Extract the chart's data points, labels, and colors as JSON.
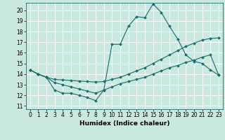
{
  "xlabel": "Humidex (Indice chaleur)",
  "bg_color": "#c8e8e0",
  "grid_color": "#ffffff",
  "line_color": "#1a6b6b",
  "xlim": [
    -0.5,
    23.5
  ],
  "ylim": [
    10.7,
    20.7
  ],
  "yticks": [
    11,
    12,
    13,
    14,
    15,
    16,
    17,
    18,
    19,
    20
  ],
  "xticks": [
    0,
    1,
    2,
    3,
    4,
    5,
    6,
    7,
    8,
    9,
    10,
    11,
    12,
    13,
    14,
    15,
    16,
    17,
    18,
    19,
    20,
    21,
    22,
    23
  ],
  "line1_x": [
    0,
    1,
    2,
    3,
    4,
    5,
    6,
    7,
    8,
    9,
    10,
    11,
    12,
    13,
    14,
    15,
    16,
    17,
    18,
    19,
    20,
    21,
    22,
    23
  ],
  "line1_y": [
    14.4,
    14.0,
    13.7,
    12.5,
    12.2,
    12.2,
    12.0,
    11.8,
    11.5,
    12.5,
    16.8,
    16.8,
    18.5,
    19.4,
    19.3,
    20.6,
    19.8,
    18.5,
    17.3,
    15.8,
    15.2,
    15.0,
    14.4,
    13.9
  ],
  "line2_x": [
    0,
    1,
    2,
    3,
    4,
    5,
    6,
    7,
    8,
    9,
    10,
    11,
    12,
    13,
    14,
    15,
    16,
    17,
    18,
    19,
    20,
    21,
    22,
    23
  ],
  "line2_y": [
    14.4,
    14.0,
    13.7,
    13.5,
    13.45,
    13.4,
    13.35,
    13.3,
    13.25,
    13.3,
    13.5,
    13.7,
    14.0,
    14.3,
    14.6,
    15.0,
    15.4,
    15.8,
    16.2,
    16.6,
    16.9,
    17.2,
    17.35,
    17.4
  ],
  "line3_x": [
    0,
    1,
    2,
    3,
    4,
    5,
    6,
    7,
    8,
    9,
    10,
    11,
    12,
    13,
    14,
    15,
    16,
    17,
    18,
    19,
    20,
    21,
    22,
    23
  ],
  "line3_y": [
    14.4,
    14.0,
    13.7,
    13.2,
    13.0,
    12.8,
    12.6,
    12.4,
    12.2,
    12.5,
    12.8,
    13.1,
    13.3,
    13.5,
    13.7,
    14.0,
    14.3,
    14.6,
    14.8,
    15.1,
    15.3,
    15.6,
    15.8,
    13.9
  ],
  "marker": "D",
  "markersize": 2.0,
  "linewidth": 0.8,
  "tick_fontsize": 5.5,
  "xlabel_fontsize": 6.5
}
